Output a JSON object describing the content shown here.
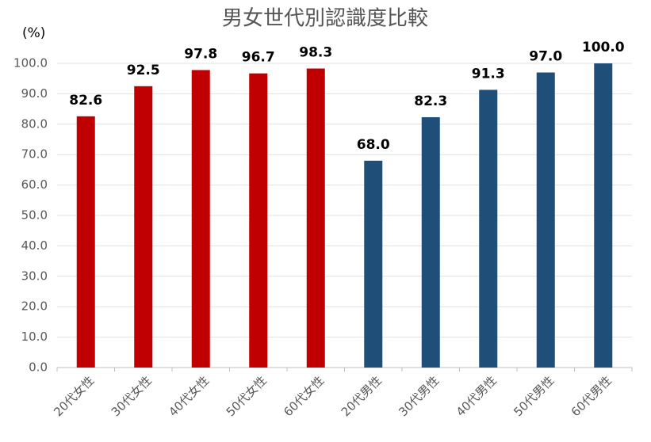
{
  "chart_data": {
    "type": "bar",
    "title": "男女世代別認識度比較",
    "y_label": "(%)",
    "categories": [
      "20代女性",
      "30代女性",
      "40代女性",
      "50代女性",
      "60代女性",
      "20代男性",
      "30代男性",
      "40代男性",
      "50代男性",
      "60代男性"
    ],
    "values": [
      82.6,
      92.5,
      97.8,
      96.7,
      98.3,
      68.0,
      82.3,
      91.3,
      97.0,
      100.0
    ],
    "value_labels": [
      "82.6",
      "92.5",
      "97.8",
      "96.7",
      "98.3",
      "68.0",
      "82.3",
      "91.3",
      "97.0",
      "100.0"
    ],
    "colors": [
      "#c00000",
      "#c00000",
      "#c00000",
      "#c00000",
      "#c00000",
      "#1f4e79",
      "#1f4e79",
      "#1f4e79",
      "#1f4e79",
      "#1f4e79"
    ],
    "ylim": [
      0,
      100
    ],
    "yticks": [
      {
        "value": 0,
        "label": "0.0"
      },
      {
        "value": 10,
        "label": "10.0"
      },
      {
        "value": 20,
        "label": "20.0"
      },
      {
        "value": 30,
        "label": "30.0"
      },
      {
        "value": 40,
        "label": "40.0"
      },
      {
        "value": 50,
        "label": "50.0"
      },
      {
        "value": 60,
        "label": "60.0"
      },
      {
        "value": 70,
        "label": "70.0"
      },
      {
        "value": 80,
        "label": "80.0"
      },
      {
        "value": 90,
        "label": "90.0"
      },
      {
        "value": 100,
        "label": "100.0"
      }
    ],
    "grid": true
  }
}
